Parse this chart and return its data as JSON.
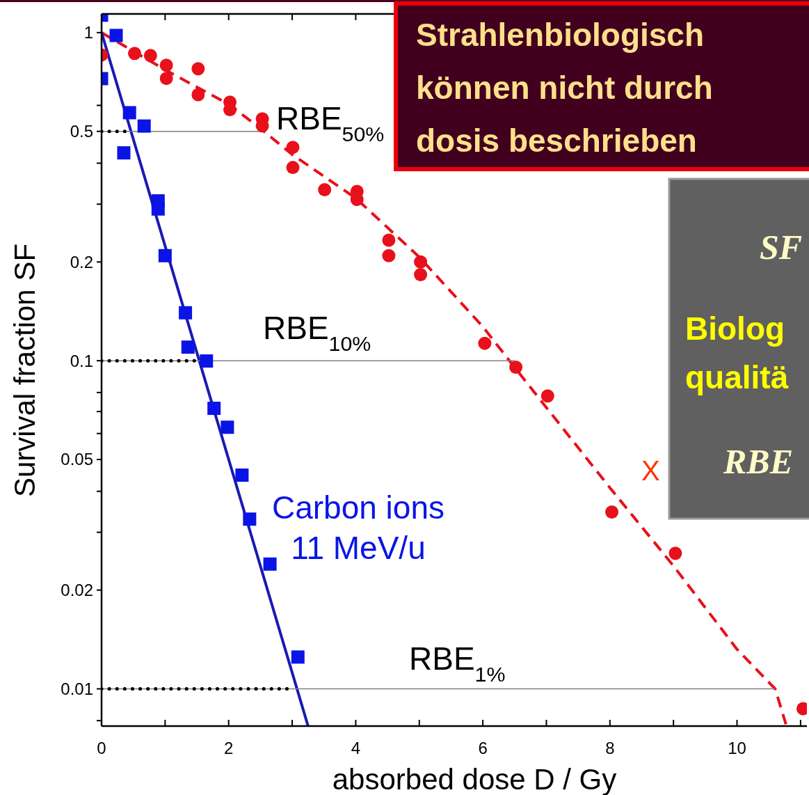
{
  "chart_data": {
    "type": "scatter",
    "title": "Strahlenbiologisch\nkönnen nicht durch\ndosis beschrieben",
    "xlabel": "absorbed dose D / Gy",
    "ylabel": "Survival fraction SF",
    "log": "y",
    "grid": false,
    "xlim": [
      0,
      11.1
    ],
    "ylim": [
      0.0077,
      1.14
    ],
    "xticks": [
      0,
      {
        "value": 1,
        "label": null
      },
      2,
      {
        "value": 3,
        "label": null
      },
      4,
      {
        "value": 5,
        "label": null
      },
      6,
      {
        "value": 7,
        "label": null
      },
      8,
      {
        "value": 9,
        "label": null
      },
      10,
      {
        "value": 11,
        "label": null
      }
    ],
    "yticks": [
      1,
      {
        "value": 0.6,
        "label": null
      },
      0.5,
      {
        "value": 0.4,
        "label": null
      },
      {
        "value": 0.3,
        "label": null
      },
      0.2,
      0.1,
      {
        "value": 0.08,
        "label": null
      },
      {
        "value": 0.07,
        "label": null
      },
      {
        "value": 0.06,
        "label": null
      },
      0.05,
      {
        "value": 0.04,
        "label": null
      },
      {
        "value": 0.03,
        "label": null
      },
      0.02,
      0.01,
      {
        "value": 0.008,
        "label": null
      }
    ],
    "series": [
      {
        "color": "#e8101a",
        "marker": "circle",
        "x": [
          0,
          0.52,
          0.77,
          1.02,
          1.02,
          1.52,
          1.52,
          2.02,
          2.02,
          2.53,
          2.53,
          3.01,
          3.01,
          3.51,
          4.02,
          4.02,
          4.52,
          4.52,
          5.02,
          5.02,
          6.03,
          6.52,
          7.02,
          8.03,
          9.03,
          11.04
        ],
        "values": [
          0.855,
          0.864,
          0.851,
          0.795,
          0.725,
          0.776,
          0.647,
          0.614,
          0.582,
          0.546,
          0.52,
          0.447,
          0.388,
          0.332,
          0.328,
          0.31,
          0.233,
          0.209,
          0.2,
          0.183,
          0.113,
          0.0955,
          0.0781,
          0.0346,
          0.0259,
          0.0087
        ]
      },
      {
        "type": "line",
        "color": "#e8101a",
        "line_style": "dashed",
        "x": [
          0,
          1,
          2,
          2.5,
          3,
          4,
          5,
          6,
          6.5,
          7,
          8,
          9,
          10,
          10.6,
          10.77
        ],
        "values": [
          1,
          0.77,
          0.605,
          0.51,
          0.425,
          0.313,
          0.207,
          0.127,
          0.0955,
          0.072,
          0.041,
          0.0237,
          0.0132,
          0.01,
          0.0078
        ]
      },
      {
        "color": "#0a14e6",
        "marker": "square",
        "x": [
          0,
          0,
          0.23,
          0.44,
          0.35,
          0.67,
          0.89,
          0.89,
          1.0,
          1.32,
          1.36,
          1.65,
          1.77,
          1.98,
          2.21,
          2.33,
          2.65,
          3.09
        ],
        "values": [
          1.13,
          0.724,
          0.98,
          0.57,
          0.43,
          0.519,
          0.307,
          0.29,
          0.209,
          0.14,
          0.11,
          0.0998,
          0.0716,
          0.0627,
          0.0448,
          0.0329,
          0.024,
          0.0125
        ]
      },
      {
        "type": "line",
        "color": "#1a1ab4",
        "line_style": "solid",
        "x": [
          0,
          3.25
        ],
        "values": [
          1,
          0.0077
        ]
      },
      {
        "type": "line",
        "color": "#808080",
        "line_style": "solid",
        "x": [
          0,
          2.5
        ],
        "values": [
          0.5,
          0.5
        ]
      },
      {
        "type": "line",
        "color": "#808080",
        "line_style": "solid",
        "x": [
          0,
          6.5
        ],
        "values": [
          0.1,
          0.1
        ]
      },
      {
        "type": "line",
        "color": "#808080",
        "line_style": "solid",
        "x": [
          0,
          10.6
        ],
        "values": [
          0.01,
          0.01
        ]
      },
      {
        "type": "line",
        "color": "#000000",
        "line_style": "dotted",
        "x": [
          0,
          0.48
        ],
        "values": [
          0.5,
          0.5
        ]
      },
      {
        "type": "line",
        "color": "#000000",
        "line_style": "dotted",
        "x": [
          0,
          1.5
        ],
        "values": [
          0.1,
          0.1
        ]
      },
      {
        "type": "line",
        "color": "#000000",
        "line_style": "dotted",
        "x": [
          0,
          2.94
        ],
        "values": [
          0.01,
          0.01
        ]
      }
    ],
    "annotations": [
      "RBE$_{50%}$",
      "RBE$_{10%}$",
      "RBE$_{1%}$",
      "Carbon ions\n11 MeV/u",
      "X",
      "SF",
      "Biolog\nqualitä",
      "RBE"
    ]
  }
}
